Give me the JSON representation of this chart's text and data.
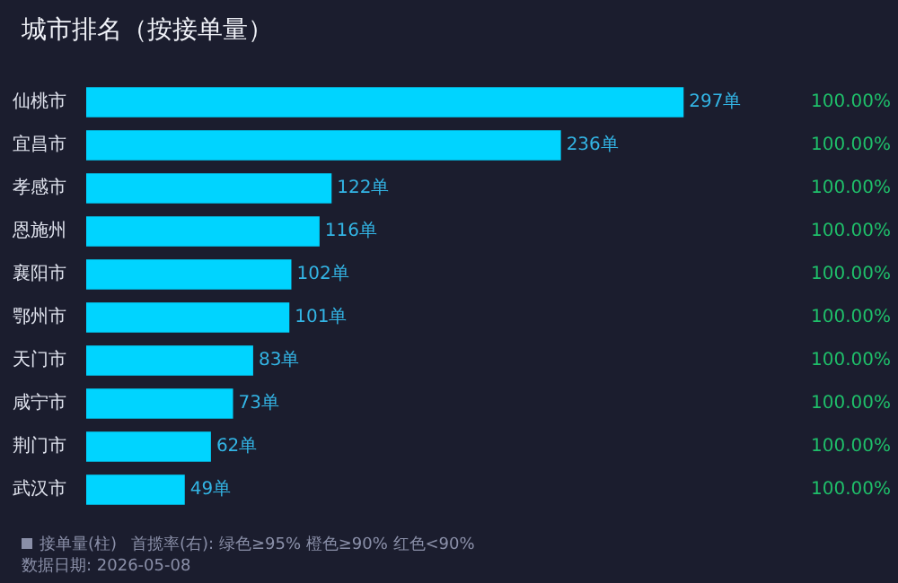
{
  "chart_data": {
    "type": "bar",
    "orientation": "horizontal",
    "title": "城市排名（按接单量）",
    "categories": [
      "仙桃市",
      "宜昌市",
      "孝感市",
      "恩施州",
      "襄阳市",
      "鄂州市",
      "天门市",
      "咸宁市",
      "荆门市",
      "武汉市"
    ],
    "series": [
      {
        "name": "接单量(柱)",
        "color": "#00d4ff",
        "values": [
          297,
          236,
          122,
          116,
          102,
          101,
          83,
          73,
          62,
          49
        ],
        "value_labels": [
          "297单",
          "236单",
          "122单",
          "116单",
          "102单",
          "101单",
          "83单",
          "73单",
          "62单",
          "49单"
        ]
      }
    ],
    "tick_labels": "y",
    "grid": false,
    "legend": false,
    "annotations": [
      "首揽率(右): 绿色≥95%  橙色≥90%  红色<90%",
      "数据日期: 2026-05-08",
      "100.00%",
      "100.00%",
      "100.00%",
      "100.00%",
      "100.00%",
      "100.00%",
      "100.00%",
      "100.00%",
      "100.00%",
      "100.00%"
    ]
  }
}
